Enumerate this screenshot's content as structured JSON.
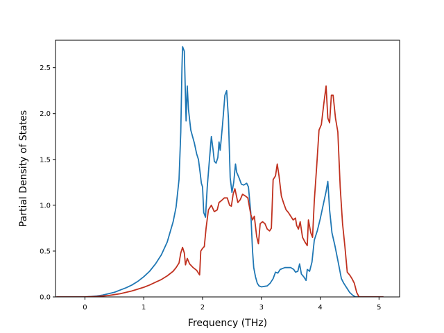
{
  "chart_data": {
    "type": "line",
    "title": "",
    "xlabel": "Frequency (THz)",
    "ylabel": "Partial Density of States",
    "xlim": [
      -0.5,
      5.35
    ],
    "ylim": [
      0,
      2.8
    ],
    "xticks": [
      0,
      1,
      2,
      3,
      4,
      5
    ],
    "xtick_labels": [
      "0",
      "1",
      "2",
      "3",
      "4",
      "5"
    ],
    "yticks": [
      0.0,
      0.5,
      1.0,
      1.5,
      2.0,
      2.5
    ],
    "ytick_labels": [
      "0.0",
      "0.5",
      "1.0",
      "1.5",
      "2.0",
      "2.5"
    ],
    "grid": false,
    "legend": "none",
    "series": [
      {
        "color": "#1f77b4",
        "points": [
          [
            -0.48,
            0.0
          ],
          [
            -0.2,
            0.0
          ],
          [
            0.0,
            0.0
          ],
          [
            0.1,
            0.005
          ],
          [
            0.2,
            0.01
          ],
          [
            0.3,
            0.02
          ],
          [
            0.4,
            0.035
          ],
          [
            0.5,
            0.05
          ],
          [
            0.6,
            0.075
          ],
          [
            0.7,
            0.1
          ],
          [
            0.8,
            0.13
          ],
          [
            0.9,
            0.17
          ],
          [
            1.0,
            0.22
          ],
          [
            1.1,
            0.28
          ],
          [
            1.2,
            0.36
          ],
          [
            1.3,
            0.46
          ],
          [
            1.4,
            0.6
          ],
          [
            1.5,
            0.82
          ],
          [
            1.55,
            0.98
          ],
          [
            1.6,
            1.28
          ],
          [
            1.63,
            1.8
          ],
          [
            1.65,
            2.5
          ],
          [
            1.66,
            2.73
          ],
          [
            1.69,
            2.68
          ],
          [
            1.72,
            1.92
          ],
          [
            1.74,
            2.3
          ],
          [
            1.76,
            2.05
          ],
          [
            1.8,
            1.82
          ],
          [
            1.86,
            1.68
          ],
          [
            1.9,
            1.56
          ],
          [
            1.93,
            1.5
          ],
          [
            1.96,
            1.35
          ],
          [
            1.98,
            1.24
          ],
          [
            2.0,
            1.2
          ],
          [
            2.02,
            0.92
          ],
          [
            2.05,
            0.87
          ],
          [
            2.08,
            1.2
          ],
          [
            2.12,
            1.52
          ],
          [
            2.15,
            1.75
          ],
          [
            2.18,
            1.6
          ],
          [
            2.2,
            1.48
          ],
          [
            2.23,
            1.46
          ],
          [
            2.26,
            1.52
          ],
          [
            2.28,
            1.69
          ],
          [
            2.3,
            1.6
          ],
          [
            2.34,
            1.88
          ],
          [
            2.38,
            2.2
          ],
          [
            2.41,
            2.25
          ],
          [
            2.44,
            1.95
          ],
          [
            2.47,
            1.3
          ],
          [
            2.5,
            1.14
          ],
          [
            2.53,
            1.25
          ],
          [
            2.56,
            1.45
          ],
          [
            2.58,
            1.36
          ],
          [
            2.62,
            1.3
          ],
          [
            2.66,
            1.23
          ],
          [
            2.7,
            1.22
          ],
          [
            2.75,
            1.24
          ],
          [
            2.78,
            1.2
          ],
          [
            2.82,
            0.92
          ],
          [
            2.85,
            0.5
          ],
          [
            2.87,
            0.32
          ],
          [
            2.9,
            0.22
          ],
          [
            2.93,
            0.15
          ],
          [
            2.96,
            0.12
          ],
          [
            3.0,
            0.11
          ],
          [
            3.05,
            0.115
          ],
          [
            3.1,
            0.12
          ],
          [
            3.15,
            0.15
          ],
          [
            3.2,
            0.2
          ],
          [
            3.24,
            0.27
          ],
          [
            3.28,
            0.26
          ],
          [
            3.32,
            0.3
          ],
          [
            3.4,
            0.32
          ],
          [
            3.5,
            0.32
          ],
          [
            3.55,
            0.3
          ],
          [
            3.58,
            0.27
          ],
          [
            3.62,
            0.28
          ],
          [
            3.65,
            0.36
          ],
          [
            3.68,
            0.25
          ],
          [
            3.72,
            0.22
          ],
          [
            3.76,
            0.18
          ],
          [
            3.78,
            0.3
          ],
          [
            3.82,
            0.28
          ],
          [
            3.86,
            0.38
          ],
          [
            3.9,
            0.62
          ],
          [
            3.95,
            0.72
          ],
          [
            4.0,
            0.85
          ],
          [
            4.05,
            1.0
          ],
          [
            4.1,
            1.15
          ],
          [
            4.13,
            1.26
          ],
          [
            4.16,
            0.95
          ],
          [
            4.2,
            0.7
          ],
          [
            4.25,
            0.56
          ],
          [
            4.3,
            0.4
          ],
          [
            4.33,
            0.3
          ],
          [
            4.36,
            0.2
          ],
          [
            4.4,
            0.15
          ],
          [
            4.45,
            0.1
          ],
          [
            4.5,
            0.05
          ],
          [
            4.55,
            0.02
          ],
          [
            4.6,
            0.0
          ],
          [
            5.0,
            0.0
          ],
          [
            5.07,
            0.0
          ]
        ]
      },
      {
        "color": "#c0311f",
        "points": [
          [
            -0.48,
            0.0
          ],
          [
            -0.2,
            0.0
          ],
          [
            0.0,
            0.0
          ],
          [
            0.2,
            0.005
          ],
          [
            0.3,
            0.01
          ],
          [
            0.4,
            0.015
          ],
          [
            0.5,
            0.025
          ],
          [
            0.6,
            0.035
          ],
          [
            0.7,
            0.05
          ],
          [
            0.8,
            0.065
          ],
          [
            0.9,
            0.085
          ],
          [
            1.0,
            0.105
          ],
          [
            1.1,
            0.13
          ],
          [
            1.2,
            0.16
          ],
          [
            1.3,
            0.19
          ],
          [
            1.4,
            0.23
          ],
          [
            1.5,
            0.28
          ],
          [
            1.55,
            0.32
          ],
          [
            1.6,
            0.37
          ],
          [
            1.63,
            0.48
          ],
          [
            1.66,
            0.54
          ],
          [
            1.69,
            0.48
          ],
          [
            1.71,
            0.35
          ],
          [
            1.74,
            0.42
          ],
          [
            1.78,
            0.36
          ],
          [
            1.84,
            0.32
          ],
          [
            1.9,
            0.29
          ],
          [
            1.95,
            0.24
          ],
          [
            1.97,
            0.5
          ],
          [
            2.0,
            0.53
          ],
          [
            2.03,
            0.55
          ],
          [
            2.06,
            0.75
          ],
          [
            2.1,
            0.95
          ],
          [
            2.15,
            1.0
          ],
          [
            2.2,
            0.93
          ],
          [
            2.25,
            0.95
          ],
          [
            2.28,
            1.03
          ],
          [
            2.32,
            1.05
          ],
          [
            2.37,
            1.08
          ],
          [
            2.42,
            1.08
          ],
          [
            2.46,
            1.0
          ],
          [
            2.49,
            0.99
          ],
          [
            2.52,
            1.12
          ],
          [
            2.55,
            1.18
          ],
          [
            2.6,
            1.03
          ],
          [
            2.64,
            1.06
          ],
          [
            2.68,
            1.12
          ],
          [
            2.73,
            1.1
          ],
          [
            2.77,
            1.08
          ],
          [
            2.82,
            0.9
          ],
          [
            2.85,
            0.84
          ],
          [
            2.88,
            0.88
          ],
          [
            2.92,
            0.66
          ],
          [
            2.95,
            0.58
          ],
          [
            2.98,
            0.8
          ],
          [
            3.02,
            0.82
          ],
          [
            3.06,
            0.8
          ],
          [
            3.1,
            0.74
          ],
          [
            3.14,
            0.72
          ],
          [
            3.17,
            0.75
          ],
          [
            3.2,
            1.28
          ],
          [
            3.24,
            1.32
          ],
          [
            3.27,
            1.45
          ],
          [
            3.3,
            1.32
          ],
          [
            3.34,
            1.1
          ],
          [
            3.38,
            1.02
          ],
          [
            3.42,
            0.95
          ],
          [
            3.46,
            0.92
          ],
          [
            3.5,
            0.88
          ],
          [
            3.54,
            0.84
          ],
          [
            3.58,
            0.86
          ],
          [
            3.6,
            0.78
          ],
          [
            3.63,
            0.74
          ],
          [
            3.66,
            0.82
          ],
          [
            3.7,
            0.65
          ],
          [
            3.74,
            0.6
          ],
          [
            3.78,
            0.56
          ],
          [
            3.8,
            0.84
          ],
          [
            3.84,
            0.7
          ],
          [
            3.87,
            0.65
          ],
          [
            3.9,
            1.05
          ],
          [
            3.94,
            1.42
          ],
          [
            3.98,
            1.82
          ],
          [
            4.02,
            1.88
          ],
          [
            4.06,
            2.1
          ],
          [
            4.1,
            2.3
          ],
          [
            4.13,
            1.95
          ],
          [
            4.16,
            1.9
          ],
          [
            4.19,
            2.2
          ],
          [
            4.22,
            2.2
          ],
          [
            4.26,
            1.95
          ],
          [
            4.3,
            1.8
          ],
          [
            4.34,
            1.2
          ],
          [
            4.38,
            0.8
          ],
          [
            4.42,
            0.55
          ],
          [
            4.46,
            0.27
          ],
          [
            4.5,
            0.24
          ],
          [
            4.54,
            0.2
          ],
          [
            4.58,
            0.15
          ],
          [
            4.62,
            0.05
          ],
          [
            4.66,
            0.0
          ],
          [
            5.0,
            0.0
          ],
          [
            5.07,
            0.0
          ]
        ]
      }
    ]
  }
}
